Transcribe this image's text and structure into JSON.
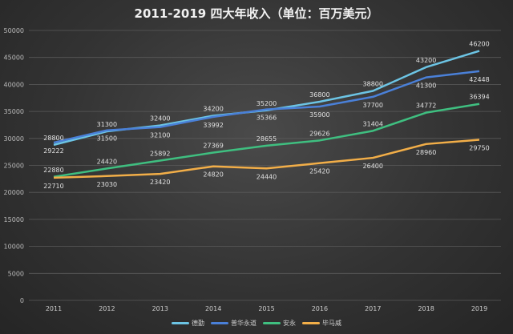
{
  "chart_data": {
    "type": "line",
    "title": "2011-2019 四大年收入（单位：百万美元）",
    "categories": [
      "2011",
      "2012",
      "2013",
      "2014",
      "2015",
      "2016",
      "2017",
      "2018",
      "2019"
    ],
    "ylim": [
      0,
      50000
    ],
    "yticks": [
      0,
      5000,
      10000,
      15000,
      20000,
      25000,
      30000,
      35000,
      40000,
      45000,
      50000
    ],
    "grid": true,
    "legend_position": "bottom",
    "series": [
      {
        "name": "德勤",
        "color": "#6cc4e4",
        "values": [
          28800,
          31300,
          32400,
          34200,
          35200,
          36800,
          38800,
          43200,
          46200
        ]
      },
      {
        "name": "普华永道",
        "color": "#4a80d8",
        "values": [
          29222,
          31500,
          32100,
          33992,
          35366,
          35900,
          37700,
          41300,
          42448
        ]
      },
      {
        "name": "安永",
        "color": "#3fbf80",
        "values": [
          22880,
          24420,
          25892,
          27369,
          28655,
          29626,
          31404,
          34772,
          36394
        ]
      },
      {
        "name": "毕马威",
        "color": "#f2ae48",
        "values": [
          22710,
          23030,
          23420,
          24820,
          24440,
          25420,
          26400,
          28960,
          29750
        ]
      }
    ]
  }
}
